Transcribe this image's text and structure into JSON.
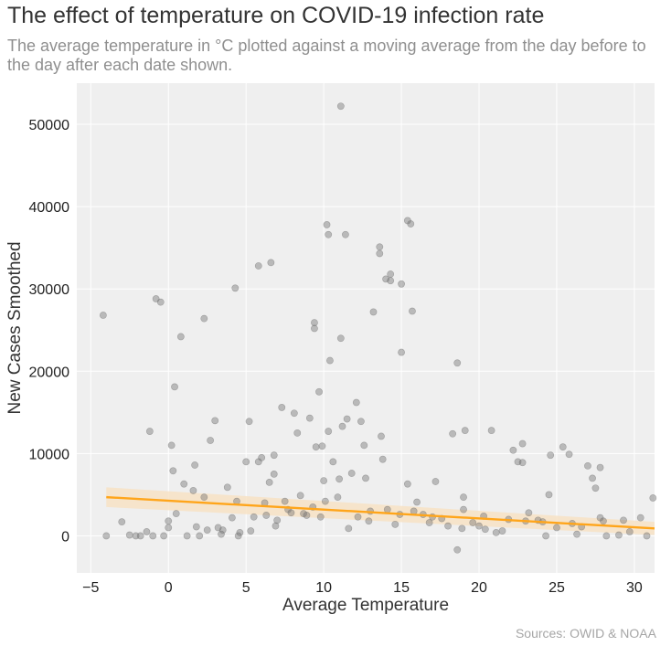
{
  "title": "The effect of temperature on COVID-19 infection rate",
  "subtitle": "The average temperature in °C plotted against a moving average from the day before to the day after each date shown.",
  "source": "Sources: OWID & NOAA",
  "colors": {
    "points": "#6e6e6e",
    "trend": "#ffa51a",
    "band": "#f7e2c4",
    "panel": "#efefef",
    "grid": "#ffffff"
  },
  "chart_data": {
    "type": "scatter",
    "title": "The effect of temperature on COVID-19 infection rate",
    "subtitle": "The average temperature in °C plotted against a moving average from the day before to the day after each date shown.",
    "xlabel": "Average Temperature",
    "ylabel": "New Cases Smoothed",
    "xlim": [
      -5.9,
      31.3
    ],
    "ylim": [
      -4500,
      55000
    ],
    "x_ticks": [
      -5,
      0,
      5,
      10,
      15,
      20,
      25,
      30
    ],
    "x_tick_labels": [
      "−5",
      "0",
      "5",
      "10",
      "15",
      "20",
      "25",
      "30"
    ],
    "y_ticks": [
      0,
      10000,
      20000,
      30000,
      40000,
      50000
    ],
    "y_tick_labels": [
      "0",
      "10000",
      "20000",
      "30000",
      "40000",
      "50000"
    ],
    "grid": true,
    "trendline": {
      "x": [
        -4,
        31.3
      ],
      "y": [
        4700,
        900
      ],
      "ci_upper": [
        5900,
        1700
      ],
      "ci_lower": [
        3500,
        100
      ]
    },
    "points": [
      [
        -4.2,
        26800
      ],
      [
        -4,
        0
      ],
      [
        -3,
        1700
      ],
      [
        -2.5,
        100
      ],
      [
        -2.1,
        0
      ],
      [
        -1.8,
        0
      ],
      [
        -1.4,
        500
      ],
      [
        -1.2,
        12700
      ],
      [
        -1,
        0
      ],
      [
        -0.8,
        28800
      ],
      [
        -0.5,
        28400
      ],
      [
        -0.3,
        0
      ],
      [
        0,
        1000
      ],
      [
        0,
        1800
      ],
      [
        0.2,
        11000
      ],
      [
        0.3,
        7900
      ],
      [
        0.4,
        18100
      ],
      [
        0.5,
        2700
      ],
      [
        0.8,
        24200
      ],
      [
        1,
        6300
      ],
      [
        1.2,
        0
      ],
      [
        1.6,
        5500
      ],
      [
        1.7,
        8600
      ],
      [
        1.8,
        1100
      ],
      [
        2,
        0
      ],
      [
        2.3,
        26400
      ],
      [
        2.3,
        4700
      ],
      [
        2.7,
        11600
      ],
      [
        3,
        14000
      ],
      [
        3.5,
        700
      ],
      [
        3.8,
        5900
      ],
      [
        4.3,
        30100
      ],
      [
        4.4,
        4200
      ],
      [
        4.5,
        0
      ],
      [
        5,
        9000
      ],
      [
        5.2,
        13900
      ],
      [
        5.5,
        2300
      ],
      [
        5.8,
        32800
      ],
      [
        5.8,
        9000
      ],
      [
        6,
        9500
      ],
      [
        6.2,
        4000
      ],
      [
        6.3,
        2500
      ],
      [
        6.5,
        6500
      ],
      [
        6.6,
        33200
      ],
      [
        6.8,
        9800
      ],
      [
        6.8,
        7500
      ],
      [
        7,
        1900
      ],
      [
        7.3,
        15600
      ],
      [
        7.5,
        4200
      ],
      [
        7.9,
        2800
      ],
      [
        8.1,
        14900
      ],
      [
        8.3,
        12500
      ],
      [
        8.5,
        4900
      ],
      [
        8.9,
        2500
      ],
      [
        9.1,
        14300
      ],
      [
        9.3,
        3500
      ],
      [
        9.4,
        25900
      ],
      [
        9.4,
        25200
      ],
      [
        9.5,
        10800
      ],
      [
        9.7,
        17500
      ],
      [
        9.9,
        10900
      ],
      [
        10,
        6700
      ],
      [
        10.1,
        4200
      ],
      [
        10.2,
        37800
      ],
      [
        10.3,
        36600
      ],
      [
        10.3,
        12700
      ],
      [
        10.4,
        21300
      ],
      [
        10.6,
        9000
      ],
      [
        10.9,
        4700
      ],
      [
        11,
        6900
      ],
      [
        11.1,
        24000
      ],
      [
        11.1,
        52200
      ],
      [
        11.2,
        13300
      ],
      [
        11.4,
        36600
      ],
      [
        11.5,
        14200
      ],
      [
        11.8,
        7600
      ],
      [
        12.1,
        16200
      ],
      [
        12.2,
        2300
      ],
      [
        12.4,
        13900
      ],
      [
        12.6,
        11000
      ],
      [
        12.7,
        7000
      ],
      [
        13,
        3000
      ],
      [
        13.2,
        27200
      ],
      [
        13.6,
        35100
      ],
      [
        13.6,
        34300
      ],
      [
        13.7,
        12100
      ],
      [
        13.8,
        9300
      ],
      [
        14,
        31200
      ],
      [
        14.3,
        31800
      ],
      [
        14.3,
        31000
      ],
      [
        14.6,
        1400
      ],
      [
        15,
        30600
      ],
      [
        15,
        22300
      ],
      [
        15.4,
        38300
      ],
      [
        15.4,
        6300
      ],
      [
        15.6,
        37900
      ],
      [
        15.7,
        27300
      ],
      [
        15.8,
        3000
      ],
      [
        16,
        4100
      ],
      [
        17,
        2300
      ],
      [
        17.2,
        6600
      ],
      [
        18,
        1200
      ],
      [
        18.3,
        12400
      ],
      [
        18.6,
        21000
      ],
      [
        18.6,
        -1700
      ],
      [
        19.1,
        12800
      ],
      [
        19,
        3200
      ],
      [
        19,
        4700
      ],
      [
        20,
        1200
      ],
      [
        20.4,
        800
      ],
      [
        20.8,
        12800
      ],
      [
        21.5,
        600
      ],
      [
        22.2,
        10400
      ],
      [
        22.5,
        9000
      ],
      [
        22.8,
        8900
      ],
      [
        22.8,
        11200
      ],
      [
        23,
        1800
      ],
      [
        23.2,
        2800
      ],
      [
        23.8,
        1900
      ],
      [
        24.3,
        0
      ],
      [
        24.5,
        5000
      ],
      [
        24.6,
        9800
      ],
      [
        25,
        1000
      ],
      [
        25.4,
        10800
      ],
      [
        25.8,
        9900
      ],
      [
        26,
        1500
      ],
      [
        26.3,
        200
      ],
      [
        27,
        8500
      ],
      [
        27.3,
        7000
      ],
      [
        27.5,
        5800
      ],
      [
        27.8,
        8300
      ],
      [
        27.8,
        2200
      ],
      [
        28,
        1800
      ],
      [
        28.2,
        0
      ],
      [
        29,
        100
      ],
      [
        29.7,
        500
      ],
      [
        30.4,
        2200
      ],
      [
        30.8,
        0
      ],
      [
        31.2,
        4600
      ],
      [
        2.5,
        700
      ],
      [
        3.2,
        1000
      ],
      [
        3.4,
        200
      ],
      [
        4.1,
        2200
      ],
      [
        4.6,
        400
      ],
      [
        5.3,
        600
      ],
      [
        6.9,
        1200
      ],
      [
        7.7,
        3200
      ],
      [
        8.7,
        2700
      ],
      [
        9.8,
        2300
      ],
      [
        11.6,
        900
      ],
      [
        12.9,
        1800
      ],
      [
        14.1,
        3200
      ],
      [
        14.9,
        2600
      ],
      [
        16.4,
        2600
      ],
      [
        16.8,
        1600
      ],
      [
        17.6,
        2100
      ],
      [
        18.9,
        900
      ],
      [
        19.6,
        1600
      ],
      [
        20.3,
        2400
      ],
      [
        21.1,
        400
      ],
      [
        21.9,
        2000
      ],
      [
        24.1,
        1700
      ],
      [
        26.6,
        1100
      ],
      [
        29.3,
        1900
      ]
    ]
  }
}
